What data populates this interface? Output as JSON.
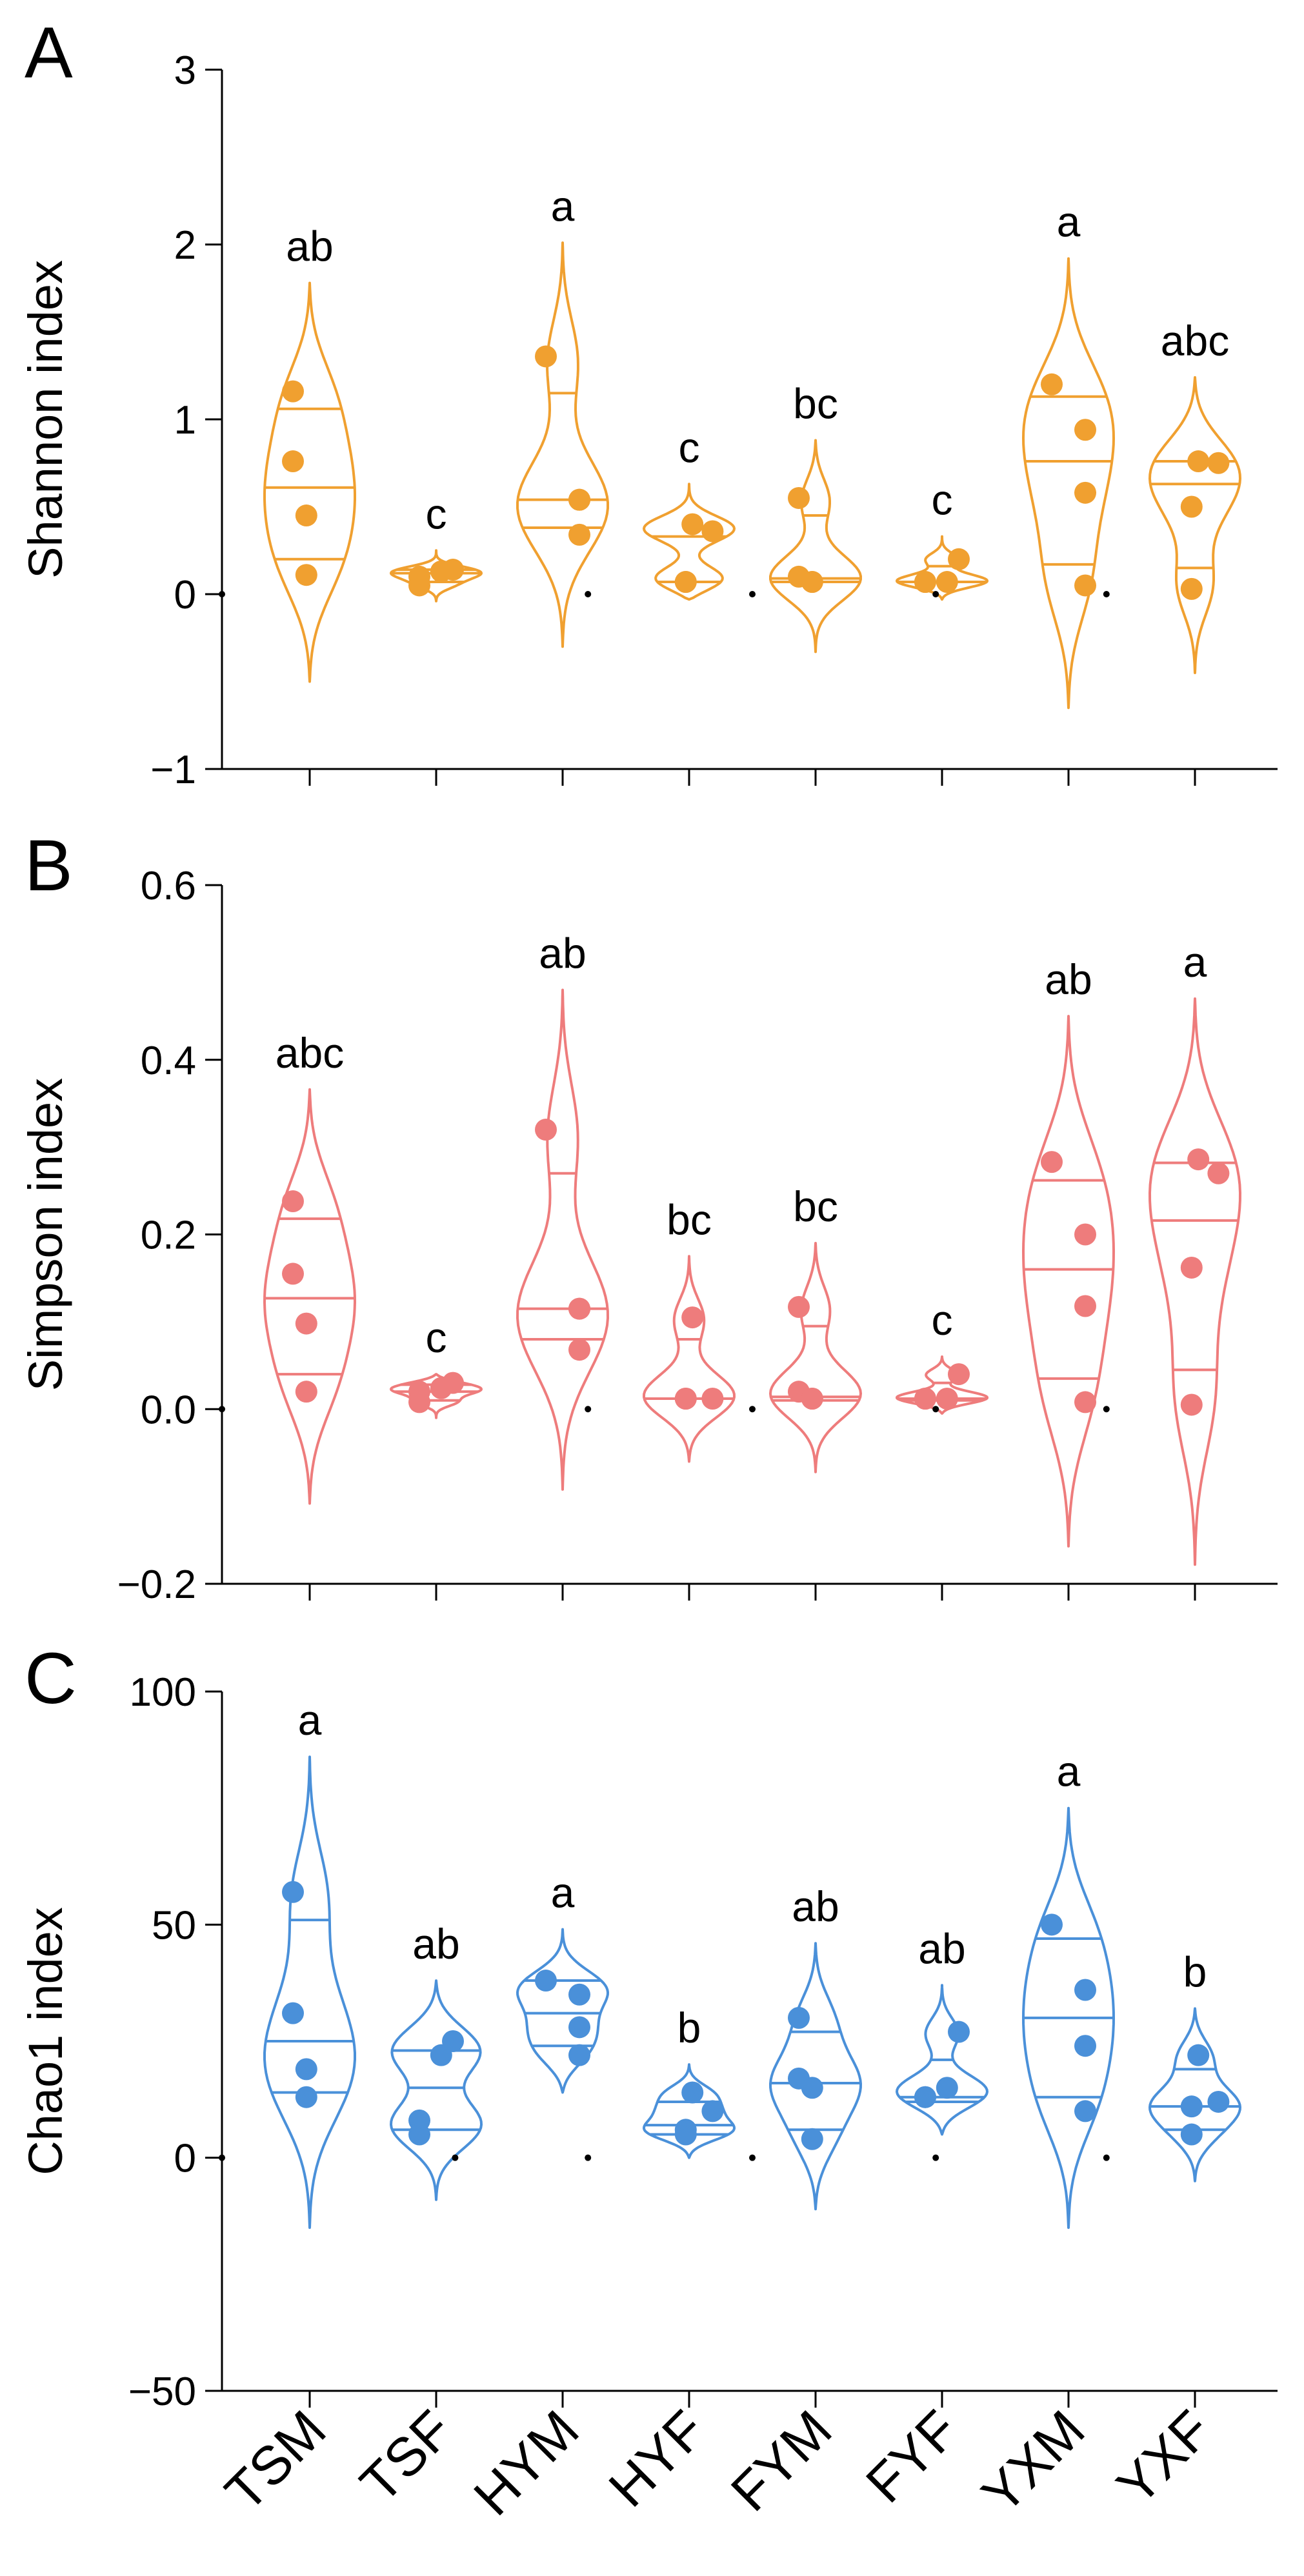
{
  "chart_data": [
    {
      "type": "violin",
      "panel": "A",
      "ylabel": "Shannon index",
      "ylim": [
        -1,
        3
      ],
      "yticks": [
        -1,
        0,
        1,
        2,
        3
      ],
      "ytick_labels": [
        "−1",
        "0",
        "1",
        "2",
        "3"
      ],
      "color": "#F0A030",
      "categories": [
        "TSM",
        "TSF",
        "HYM",
        "HYF",
        "FYM",
        "FYF",
        "YXM",
        "YXF"
      ],
      "letters": [
        "ab",
        "c",
        "a",
        "c",
        "bc",
        "c",
        "a",
        "abc"
      ],
      "points": [
        [
          1.16,
          0.76,
          0.45,
          0.11
        ],
        [
          0.14,
          0.13,
          0.1,
          0.05
        ],
        [
          1.36,
          0.54,
          0.54,
          0.34
        ],
        [
          0.4,
          0.36,
          0.07,
          0.07
        ],
        [
          0.55,
          0.1,
          0.07,
          0.07
        ],
        [
          0.2,
          0.07,
          0.07,
          0.07
        ],
        [
          1.2,
          0.94,
          0.58,
          0.05
        ],
        [
          0.76,
          0.75,
          0.5,
          0.03
        ]
      ],
      "median": [
        0.61,
        0.12,
        0.54,
        0.07,
        0.09,
        0.07,
        0.76,
        0.63
      ],
      "q1": [
        0.2,
        0.07,
        0.38,
        0.07,
        0.07,
        0.07,
        0.17,
        0.15
      ],
      "q3": [
        1.06,
        0.14,
        1.15,
        0.33,
        0.45,
        0.16,
        1.13,
        0.76
      ],
      "vmin": [
        -0.5,
        -0.04,
        -0.3,
        -0.03,
        -0.33,
        -0.03,
        -0.65,
        -0.45
      ],
      "vmax": [
        1.78,
        0.25,
        2.01,
        0.63,
        0.88,
        0.33,
        1.92,
        1.24
      ],
      "stray_dots": [
        [
          0,
          0
        ],
        [
          2.2,
          0
        ],
        [
          3.5,
          0
        ],
        [
          4.95,
          0
        ],
        [
          6.3,
          0
        ]
      ]
    },
    {
      "type": "violin",
      "panel": "B",
      "ylabel": "Simpson index",
      "ylim": [
        -0.2,
        0.6
      ],
      "yticks": [
        -0.2,
        0,
        0.2,
        0.4,
        0.6
      ],
      "ytick_labels": [
        "−0.2",
        "0.0",
        "0.2",
        "0.4",
        "0.6"
      ],
      "color": "#EE7C7C",
      "categories": [
        "TSM",
        "TSF",
        "HYM",
        "HYF",
        "FYM",
        "FYF",
        "YXM",
        "YXF"
      ],
      "letters": [
        "abc",
        "c",
        "ab",
        "bc",
        "bc",
        "c",
        "ab",
        "a"
      ],
      "points": [
        [
          0.238,
          0.155,
          0.098,
          0.02
        ],
        [
          0.03,
          0.024,
          0.02,
          0.008
        ],
        [
          0.32,
          0.115,
          0.115,
          0.068
        ],
        [
          0.105,
          0.012,
          0.012,
          0.012
        ],
        [
          0.117,
          0.02,
          0.012,
          0.012
        ],
        [
          0.04,
          0.012,
          0.012,
          0.012
        ],
        [
          0.283,
          0.2,
          0.118,
          0.008
        ],
        [
          0.286,
          0.27,
          0.162,
          0.005
        ]
      ],
      "median": [
        0.127,
        0.02,
        0.115,
        0.012,
        0.014,
        0.012,
        0.16,
        0.216
      ],
      "q1": [
        0.04,
        0.01,
        0.08,
        0.012,
        0.01,
        0.01,
        0.035,
        0.045
      ],
      "q3": [
        0.218,
        0.028,
        0.27,
        0.08,
        0.095,
        0.03,
        0.262,
        0.282
      ],
      "vmin": [
        -0.108,
        -0.01,
        -0.092,
        -0.06,
        -0.072,
        -0.005,
        -0.157,
        -0.178
      ],
      "vmax": [
        0.366,
        0.04,
        0.48,
        0.175,
        0.19,
        0.06,
        0.45,
        0.47
      ],
      "stray_dots": [
        [
          0,
          0
        ],
        [
          2.2,
          0
        ],
        [
          3.5,
          0
        ],
        [
          4.95,
          0
        ],
        [
          6.3,
          0
        ]
      ]
    },
    {
      "type": "violin",
      "panel": "C",
      "ylabel": "Chao1 index",
      "ylim": [
        -50,
        100
      ],
      "yticks": [
        -50,
        0,
        50,
        100
      ],
      "ytick_labels": [
        "−50",
        "0",
        "50",
        "100"
      ],
      "color": "#4A90D9",
      "categories": [
        "TSM",
        "TSF",
        "HYM",
        "HYF",
        "FYM",
        "FYF",
        "YXM",
        "YXF"
      ],
      "xtick_labels": [
        "TSM",
        "TSF",
        "HYM",
        "HYF",
        "FYM",
        "FYF",
        "YXM",
        "YXF"
      ],
      "letters": [
        "a",
        "ab",
        "a",
        "b",
        "ab",
        "ab",
        "a",
        "b"
      ],
      "points": [
        [
          57,
          31,
          19,
          13
        ],
        [
          25,
          22,
          8,
          5
        ],
        [
          38,
          35,
          28,
          22
        ],
        [
          14,
          10,
          6,
          5
        ],
        [
          30,
          17,
          15,
          4
        ],
        [
          27,
          15,
          13,
          13
        ],
        [
          50,
          36,
          24,
          10
        ],
        [
          22,
          12,
          11,
          5
        ]
      ],
      "median": [
        25,
        15,
        31,
        7,
        16,
        13,
        30,
        11
      ],
      "q1": [
        14,
        6,
        24,
        5,
        6,
        12,
        13,
        6
      ],
      "q3": [
        51,
        23,
        38,
        12,
        27,
        21,
        47,
        19
      ],
      "vmin": [
        -15,
        -9,
        14,
        0,
        -11,
        5,
        -15,
        -5
      ],
      "vmax": [
        86,
        38,
        49,
        20,
        46,
        37,
        75,
        32
      ],
      "stray_dots": [
        [
          0,
          0
        ],
        [
          1.15,
          0
        ],
        [
          2.2,
          0
        ],
        [
          3.5,
          0
        ],
        [
          4.95,
          0
        ],
        [
          6.3,
          0
        ]
      ]
    }
  ],
  "panel_letters": [
    "A",
    "B",
    "C"
  ]
}
